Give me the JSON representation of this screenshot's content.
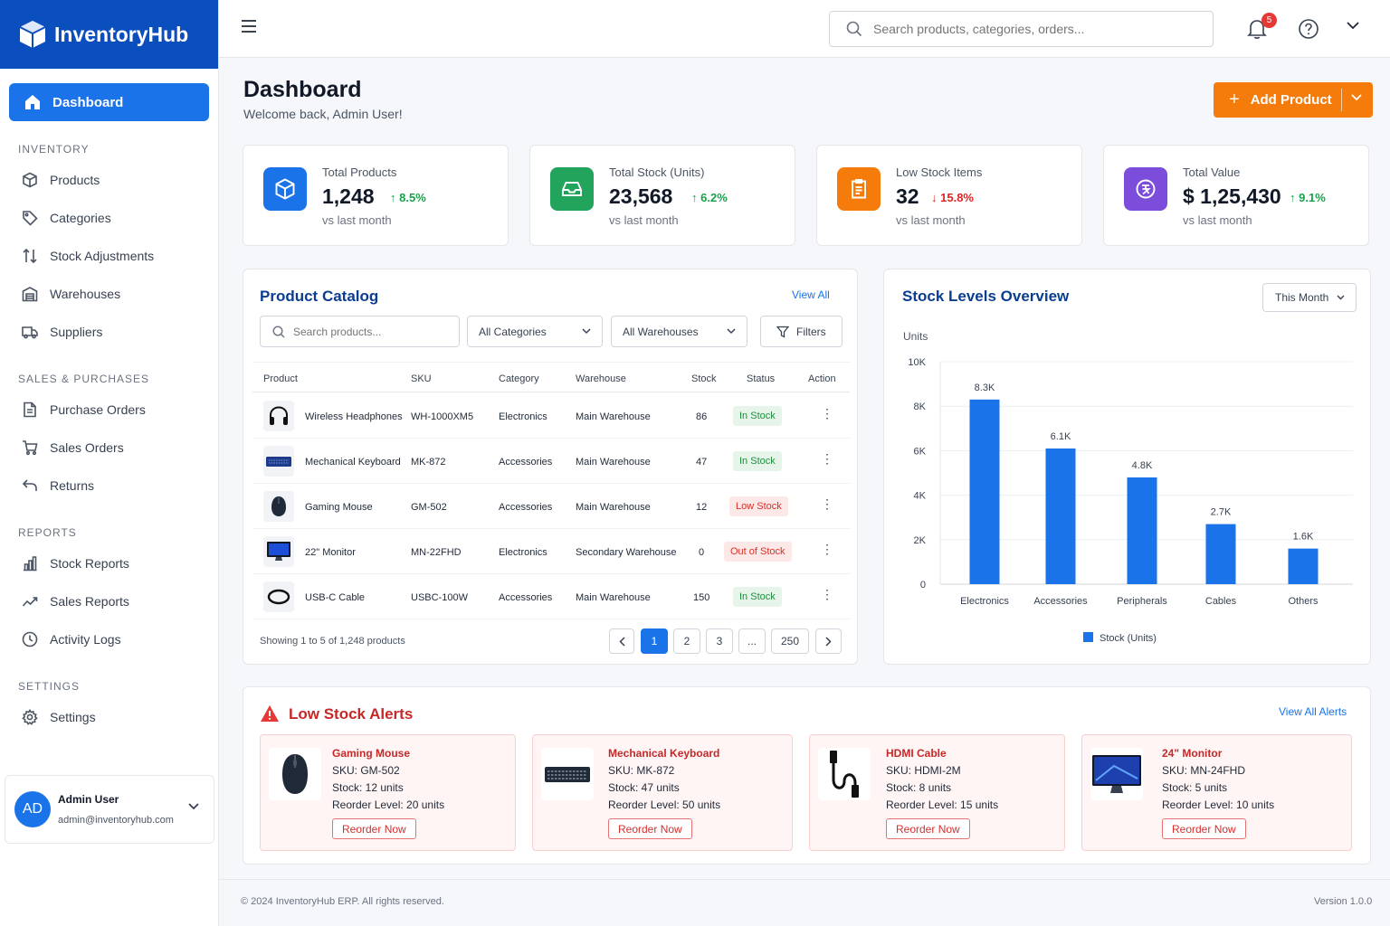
{
  "brand": {
    "name": "InventoryHub"
  },
  "sidebar": {
    "active": "Dashboard",
    "sections": [
      {
        "title": "INVENTORY",
        "items": [
          "Products",
          "Categories",
          "Stock Adjustments",
          "Warehouses",
          "Suppliers"
        ]
      },
      {
        "title": "SALES & PURCHASES",
        "items": [
          "Purchase Orders",
          "Sales Orders",
          "Returns"
        ]
      },
      {
        "title": "REPORTS",
        "items": [
          "Stock Reports",
          "Sales Reports",
          "Activity Logs"
        ]
      },
      {
        "title": "SETTINGS",
        "items": [
          "Settings"
        ]
      }
    ],
    "user": {
      "initials": "AD",
      "name": "Admin User",
      "email": "admin@inventoryhub.com"
    }
  },
  "topbar": {
    "search_placeholder": "Search products, categories, orders...",
    "notification_count": "5"
  },
  "header": {
    "title": "Dashboard",
    "subtitle": "Welcome back, Admin User!",
    "add_button": "Add Product"
  },
  "stats": [
    {
      "label": "Total Products",
      "value": "1,248",
      "change": "8.5%",
      "direction": "up",
      "sub": "vs last month",
      "color": "#1a73e8"
    },
    {
      "label": "Total Stock (Units)",
      "value": "23,568",
      "change": "6.2%",
      "direction": "up",
      "sub": "vs last month",
      "color": "#22a45d"
    },
    {
      "label": "Low Stock Items",
      "value": "32",
      "change": "15.8%",
      "direction": "down",
      "sub": "vs last month",
      "color": "#f57c0a"
    },
    {
      "label": "Total Value",
      "value": "$ 1,25,430",
      "change": "9.1%",
      "direction": "up",
      "sub": "vs last month",
      "color": "#7c4ddb"
    }
  ],
  "catalog": {
    "title": "Product Catalog",
    "view_all": "View All",
    "search_placeholder": "Search products...",
    "category_filter": "All Categories",
    "warehouse_filter": "All Warehouses",
    "filters_label": "Filters",
    "columns": [
      "Product",
      "SKU",
      "Category",
      "Warehouse",
      "Stock",
      "Status",
      "Action"
    ],
    "rows": [
      {
        "product": "Wireless Headphones",
        "sku": "WH-1000XM5",
        "category": "Electronics",
        "warehouse": "Main Warehouse",
        "stock": "86",
        "status": "In Stock",
        "icon": "headphones-icon"
      },
      {
        "product": "Mechanical Keyboard",
        "sku": "MK-872",
        "category": "Accessories",
        "warehouse": "Main Warehouse",
        "stock": "47",
        "status": "In Stock",
        "icon": "keyboard-icon"
      },
      {
        "product": "Gaming Mouse",
        "sku": "GM-502",
        "category": "Accessories",
        "warehouse": "Main Warehouse",
        "stock": "12",
        "status": "Low Stock",
        "icon": "mouse-icon"
      },
      {
        "product": "22\" Monitor",
        "sku": "MN-22FHD",
        "category": "Electronics",
        "warehouse": "Secondary Warehouse",
        "stock": "0",
        "status": "Out of Stock",
        "icon": "monitor-icon"
      },
      {
        "product": "USB-C Cable",
        "sku": "USBC-100W",
        "category": "Accessories",
        "warehouse": "Main Warehouse",
        "stock": "150",
        "status": "In Stock",
        "icon": "cable-icon"
      }
    ],
    "showing": "Showing 1 to 5 of 1,248 products",
    "pages": [
      "1",
      "2",
      "3",
      "...",
      "250"
    ]
  },
  "chart_panel": {
    "title": "Stock Levels Overview",
    "period": "This Month"
  },
  "chart_data": {
    "type": "bar",
    "ylabel": "Units",
    "categories": [
      "Electronics",
      "Accessories",
      "Peripherals",
      "Cables",
      "Others"
    ],
    "series": [
      {
        "name": "Stock (Units)",
        "values": [
          8300,
          6100,
          4800,
          2700,
          1600
        ],
        "color": "#1a73e8"
      }
    ],
    "data_labels": [
      "8.3K",
      "6.1K",
      "4.8K",
      "2.7K",
      "1.6K"
    ],
    "yticks": [
      0,
      2000,
      4000,
      6000,
      8000,
      10000
    ],
    "ytick_labels": [
      "0",
      "2K",
      "4K",
      "6K",
      "8K",
      "10K"
    ],
    "ylim": [
      0,
      10000
    ],
    "grid": true,
    "legend": "bottom"
  },
  "alerts": {
    "title": "Low Stock Alerts",
    "view_all": "View All Alerts",
    "items": [
      {
        "name": "Gaming Mouse",
        "sku": "SKU: GM-502",
        "stock": "Stock: 12 units",
        "reorder": "Reorder Level: 20 units",
        "button": "Reorder Now",
        "icon": "mouse-icon"
      },
      {
        "name": "Mechanical Keyboard",
        "sku": "SKU: MK-872",
        "stock": "Stock: 47 units",
        "reorder": "Reorder Level: 50 units",
        "button": "Reorder Now",
        "icon": "keyboard-icon"
      },
      {
        "name": "HDMI Cable",
        "sku": "SKU: HDMI-2M",
        "stock": "Stock: 8 units",
        "reorder": "Reorder Level: 15 units",
        "button": "Reorder Now",
        "icon": "cable-icon"
      },
      {
        "name": "24\" Monitor",
        "sku": "SKU: MN-24FHD",
        "stock": "Stock: 5 units",
        "reorder": "Reorder Level: 10 units",
        "button": "Reorder Now",
        "icon": "monitor-icon"
      }
    ]
  },
  "footer": {
    "copyright": "© 2024 InventoryHub ERP. All rights reserved.",
    "version": "Version 1.0.0"
  }
}
